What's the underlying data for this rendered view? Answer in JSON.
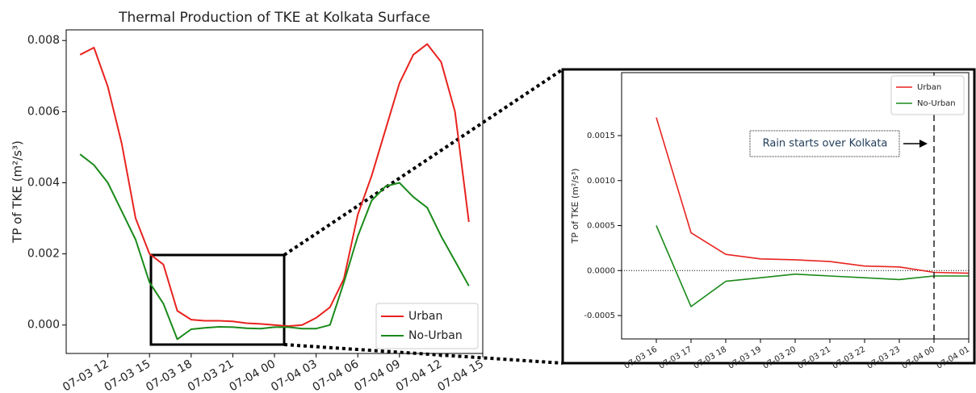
{
  "chart_data": [
    {
      "type": "line",
      "title": "Thermal Production of TKE at Kolkata Surface",
      "ylabel": "TP of TKE (m²/s³)",
      "x": [
        "07-03 10",
        "07-03 11",
        "07-03 12",
        "07-03 13",
        "07-03 14",
        "07-03 15",
        "07-03 16",
        "07-03 17",
        "07-03 18",
        "07-03 19",
        "07-03 20",
        "07-03 21",
        "07-03 22",
        "07-03 23",
        "07-04 00",
        "07-04 01",
        "07-04 02",
        "07-04 03",
        "07-04 04",
        "07-04 05",
        "07-04 06",
        "07-04 07",
        "07-04 08",
        "07-04 09",
        "07-04 10",
        "07-04 11",
        "07-04 12",
        "07-04 13",
        "07-04 14"
      ],
      "series": [
        {
          "name": "Urban",
          "color": "#e8231f",
          "values": [
            0.0076,
            0.0078,
            0.0067,
            0.0051,
            0.003,
            0.002,
            0.0017,
            0.0004,
            0.00015,
            0.00012,
            0.00012,
            0.0001,
            5e-05,
            3e-05,
            0.0,
            -3e-05,
            0.0,
            0.0002,
            0.0005,
            0.0013,
            0.0031,
            0.0042,
            0.0055,
            0.0068,
            0.0076,
            0.0079,
            0.0074,
            0.006,
            0.0029
          ]
        },
        {
          "name": "No-Urban",
          "color": "#1a8a1a",
          "values": [
            0.0048,
            0.0045,
            0.004,
            0.0032,
            0.0024,
            0.0012,
            0.0006,
            -0.0004,
            -0.00012,
            -8e-05,
            -5e-05,
            -6e-05,
            -9e-05,
            -0.0001,
            -6e-05,
            -6e-05,
            -0.0001,
            -0.0001,
            0.0,
            0.0012,
            0.0025,
            0.0035,
            0.0039,
            0.004,
            0.0036,
            0.0033,
            0.0025,
            0.0018,
            0.0011
          ]
        }
      ],
      "xlim": [
        "07-03 09",
        "07-04 15"
      ],
      "xticks": [
        "07-03 12",
        "07-03 15",
        "07-03 18",
        "07-03 21",
        "07-04 00",
        "07-04 03",
        "07-04 06",
        "07-04 09",
        "07-04 12",
        "07-04 15"
      ],
      "ylim": [
        -0.0008,
        0.0083
      ],
      "yticks": [
        {
          "value": 0,
          "label": "0.000"
        },
        0.002,
        0.004,
        0.006,
        0.008
      ],
      "legend": "lower right"
    },
    {
      "type": "line",
      "ylabel": "TP of TKE (m²/s³)",
      "x": [
        "07-03 16",
        "07-03 17",
        "07-03 18",
        "07-03 19",
        "07-03 20",
        "07-03 21",
        "07-03 22",
        "07-03 23",
        "07-04 00",
        "07-04 01"
      ],
      "series": [
        {
          "name": "Urban",
          "color": "#e8231f",
          "values": [
            0.0017,
            0.00042,
            0.00018,
            0.00013,
            0.00012,
            0.0001,
            5e-05,
            4e-05,
            -2e-05,
            -3e-05
          ]
        },
        {
          "name": "No-Urban",
          "color": "#1a8a1a",
          "values": [
            0.0005,
            -0.0004,
            -0.00012,
            -8e-05,
            -4e-05,
            -6e-05,
            -8e-05,
            -0.0001,
            -6e-05,
            -6e-05
          ]
        }
      ],
      "xlim": [
        "07-03 15",
        "07-04 01"
      ],
      "xticks": [
        "07-03 16",
        "07-03 17",
        "07-03 18",
        "07-03 19",
        "07-03 20",
        "07-03 21",
        "07-03 22",
        "07-03 23",
        "07-04 00",
        "07-04 01"
      ],
      "ylim": [
        -0.00076,
        0.0022
      ],
      "yticks": [
        -0.0005,
        {
          "value": 0,
          "label": "0.0000"
        },
        0.0005,
        {
          "value": 0.001,
          "label": "0.0010"
        },
        0.0015
      ],
      "hline": 0,
      "vline": "07-04 00",
      "annotation": "Rain starts over Kolkata",
      "legend": "upper right"
    }
  ]
}
